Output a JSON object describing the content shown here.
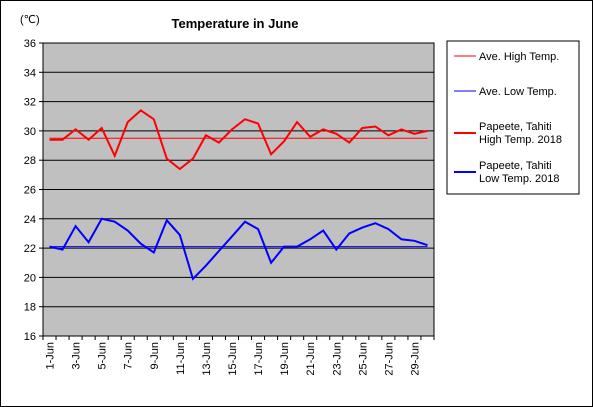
{
  "chart_data": {
    "type": "line",
    "title": "Temperature in June",
    "unit_label": "(℃)",
    "xlabel": "",
    "ylabel": "",
    "ylim": [
      16,
      36
    ],
    "y_ticks": [
      16,
      18,
      20,
      22,
      24,
      26,
      28,
      30,
      32,
      34,
      36
    ],
    "grid": true,
    "legend_position": "right",
    "x": [
      "1-Jun",
      "2-Jun",
      "3-Jun",
      "4-Jun",
      "5-Jun",
      "6-Jun",
      "7-Jun",
      "8-Jun",
      "9-Jun",
      "10-Jun",
      "11-Jun",
      "12-Jun",
      "13-Jun",
      "14-Jun",
      "15-Jun",
      "16-Jun",
      "17-Jun",
      "18-Jun",
      "19-Jun",
      "20-Jun",
      "21-Jun",
      "22-Jun",
      "23-Jun",
      "24-Jun",
      "25-Jun",
      "26-Jun",
      "27-Jun",
      "28-Jun",
      "29-Jun",
      "30-Jun"
    ],
    "x_tick_labels": [
      "1-Jun",
      "3-Jun",
      "5-Jun",
      "7-Jun",
      "9-Jun",
      "11-Jun",
      "13-Jun",
      "15-Jun",
      "17-Jun",
      "19-Jun",
      "21-Jun",
      "23-Jun",
      "25-Jun",
      "27-Jun",
      "29-Jun"
    ],
    "series": [
      {
        "name": "Ave. High Temp.",
        "color": "#ff0000",
        "width": 1,
        "values": [
          29.5,
          29.5,
          29.5,
          29.5,
          29.5,
          29.5,
          29.5,
          29.5,
          29.5,
          29.5,
          29.5,
          29.5,
          29.5,
          29.5,
          29.5,
          29.5,
          29.5,
          29.5,
          29.5,
          29.5,
          29.5,
          29.5,
          29.5,
          29.5,
          29.5,
          29.5,
          29.5,
          29.5,
          29.5,
          29.5
        ]
      },
      {
        "name": "Ave. Low Temp.",
        "color": "#0000ff",
        "width": 1,
        "values": [
          22.1,
          22.1,
          22.1,
          22.1,
          22.1,
          22.1,
          22.1,
          22.1,
          22.1,
          22.1,
          22.1,
          22.1,
          22.1,
          22.1,
          22.1,
          22.1,
          22.1,
          22.1,
          22.1,
          22.1,
          22.1,
          22.1,
          22.1,
          22.1,
          22.1,
          22.1,
          22.1,
          22.1,
          22.1,
          22.1
        ]
      },
      {
        "name": "Papeete, Tahiti High Temp. 2018",
        "name_lines": [
          "Papeete, Tahiti",
          "High Temp. 2018"
        ],
        "color": "#ff0000",
        "width": 2,
        "values": [
          29.4,
          29.4,
          30.1,
          29.4,
          30.2,
          28.3,
          30.6,
          31.4,
          30.8,
          28.1,
          27.4,
          28.1,
          29.7,
          29.2,
          30.1,
          30.8,
          30.5,
          28.4,
          29.3,
          30.6,
          29.6,
          30.1,
          29.8,
          29.2,
          30.2,
          30.3,
          29.7,
          30.1,
          29.8,
          30.0
        ]
      },
      {
        "name": "Papeete, Tahiti Low Temp. 2018",
        "name_lines": [
          "Papeete, Tahiti",
          "Low Temp. 2018"
        ],
        "color": "#0000ff",
        "width": 2,
        "values": [
          22.1,
          21.9,
          23.5,
          22.4,
          24.0,
          23.8,
          23.2,
          22.3,
          21.7,
          23.9,
          22.9,
          19.9,
          20.8,
          21.8,
          22.8,
          23.8,
          23.3,
          21.0,
          22.1,
          22.1,
          22.6,
          23.2,
          21.9,
          23.0,
          23.4,
          23.7,
          23.3,
          22.6,
          22.5,
          22.2
        ]
      }
    ]
  }
}
